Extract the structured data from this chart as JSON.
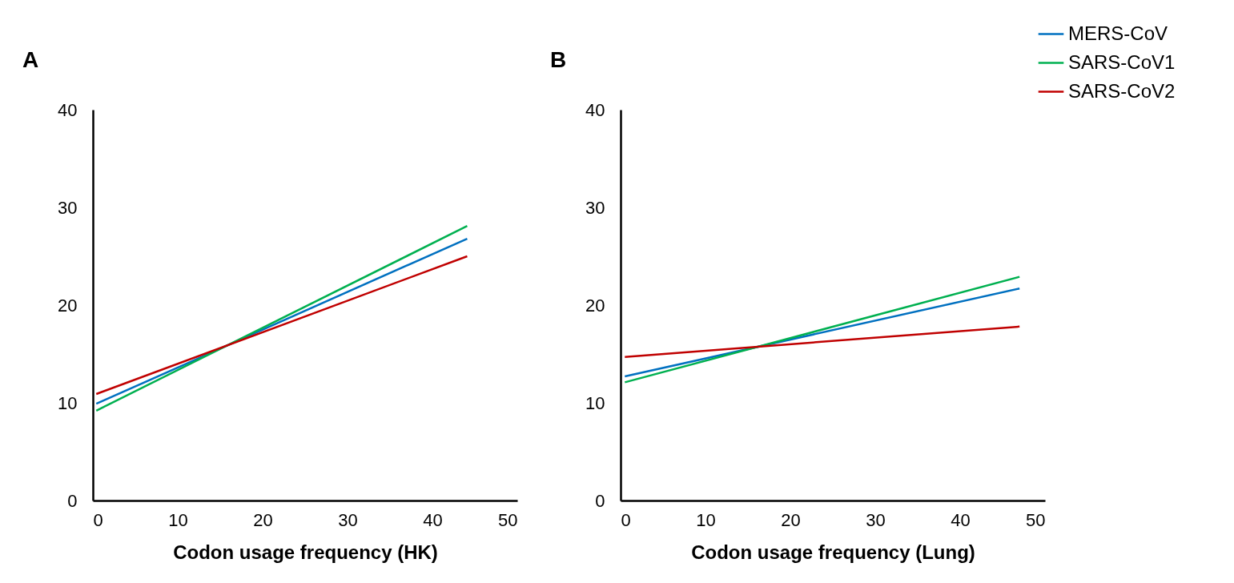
{
  "chart_data": [
    {
      "type": "line",
      "title": "A",
      "xlabel": "Codon usage frequency (HK)",
      "x": [
        0.4,
        44.1
      ],
      "xlim": [
        0,
        50
      ],
      "xticks": [
        0,
        10,
        20,
        30,
        40,
        50
      ],
      "ylim": [
        0,
        40
      ],
      "yticks": [
        0,
        10,
        20,
        30,
        40
      ],
      "grid": false,
      "legend": "top right",
      "marker": "none",
      "line_style": "solid",
      "series": [
        {
          "name": "MERS-CoV",
          "color": "#0070c0",
          "values": [
            9.9,
            26.8
          ]
        },
        {
          "name": "SARS-CoV1",
          "color": "#00b050",
          "values": [
            9.2,
            28.1
          ]
        },
        {
          "name": "SARS-CoV2",
          "color": "#c00000",
          "values": [
            10.9,
            25.0
          ]
        }
      ]
    },
    {
      "type": "line",
      "title": "B",
      "xlabel": "Codon usage frequency (Lung)",
      "x": [
        0.5,
        47.0
      ],
      "xlim": [
        0,
        50
      ],
      "xticks": [
        0,
        10,
        20,
        30,
        40,
        50
      ],
      "ylim": [
        0,
        40
      ],
      "yticks": [
        0,
        10,
        20,
        30,
        40
      ],
      "grid": false,
      "legend": "top right",
      "marker": "none",
      "line_style": "solid",
      "series": [
        {
          "name": "MERS-CoV",
          "color": "#0070c0",
          "values": [
            12.7,
            21.7
          ]
        },
        {
          "name": "SARS-CoV1",
          "color": "#00b050",
          "values": [
            12.1,
            22.9
          ]
        },
        {
          "name": "SARS-CoV2",
          "color": "#c00000",
          "values": [
            14.7,
            17.8
          ]
        }
      ]
    }
  ]
}
